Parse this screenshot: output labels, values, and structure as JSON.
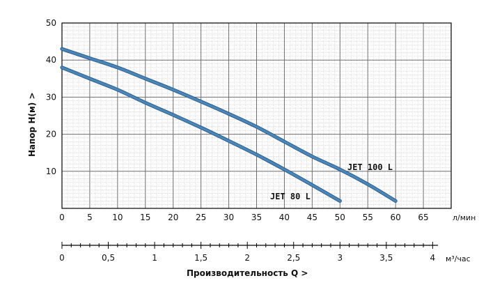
{
  "chart_data": {
    "type": "line",
    "ylabel": "Напор  H(м)  >",
    "xlabel": "Производительность Q  >",
    "x_unit": "л/мин",
    "x2_unit": "м³/час",
    "ylim": [
      0,
      50
    ],
    "xlim": [
      0,
      70
    ],
    "y_ticks": [
      "10",
      "20",
      "30",
      "40",
      "50"
    ],
    "x_ticks": [
      "0",
      "5",
      "10",
      "15",
      "20",
      "25",
      "30",
      "35",
      "40",
      "45",
      "50",
      "55",
      "60",
      "65"
    ],
    "x2_ticks": [
      "0",
      "0,5",
      "1",
      "1,5",
      "2",
      "2,5",
      "3",
      "3,5",
      "4"
    ],
    "grid": true,
    "series": [
      {
        "name": "JET 100 L",
        "color": "#4a86b8",
        "x": [
          0,
          5,
          10,
          15,
          20,
          25,
          30,
          35,
          40,
          45,
          50,
          55,
          60
        ],
        "y": [
          43,
          40.5,
          38,
          35,
          32,
          28.8,
          25.5,
          22,
          18,
          14,
          10.5,
          6.5,
          2
        ]
      },
      {
        "name": "JET 80 L",
        "color": "#4a86b8",
        "x": [
          0,
          5,
          10,
          15,
          20,
          25,
          30,
          35,
          40,
          45,
          50
        ],
        "y": [
          38,
          35,
          32,
          28.5,
          25.2,
          21.8,
          18.2,
          14.5,
          10.5,
          6.3,
          2
        ]
      }
    ]
  }
}
